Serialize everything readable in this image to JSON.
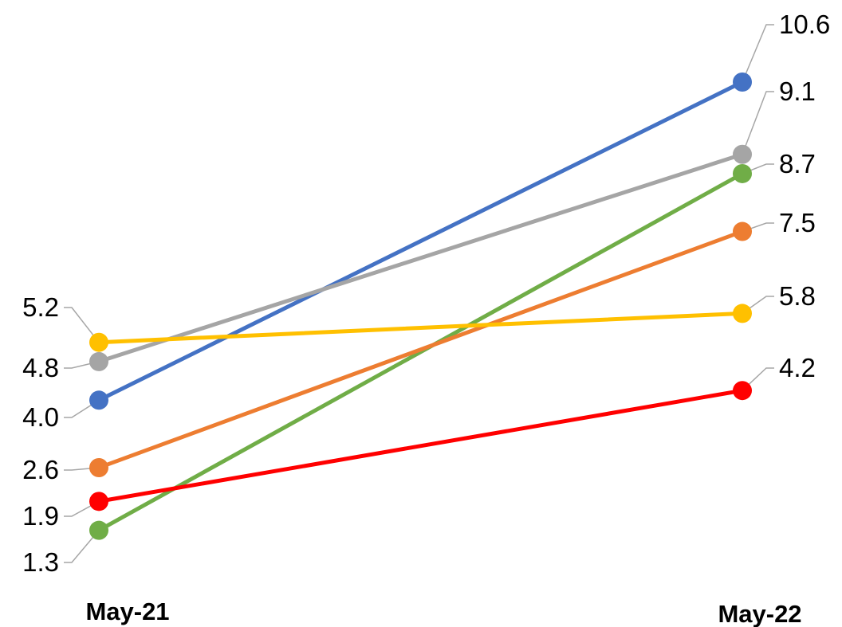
{
  "chart_data": {
    "type": "line",
    "categories": [
      "May-21",
      "May-22"
    ],
    "series": [
      {
        "color": "#4472C4",
        "values": [
          4.0,
          10.6
        ],
        "labels": [
          "4.0",
          "10.6"
        ]
      },
      {
        "color": "#A5A5A5",
        "values": [
          4.8,
          9.1
        ],
        "labels": [
          "4.8",
          "9.1"
        ]
      },
      {
        "color": "#70AD47",
        "values": [
          1.3,
          8.7
        ],
        "labels": [
          "1.3",
          "8.7"
        ]
      },
      {
        "color": "#ED7D31",
        "values": [
          2.6,
          7.5
        ],
        "labels": [
          "2.6",
          "7.5"
        ]
      },
      {
        "color": "#FFC000",
        "values": [
          5.2,
          5.8
        ],
        "labels": [
          "5.2",
          "5.8"
        ]
      },
      {
        "color": "#FF0000",
        "values": [
          1.9,
          4.2
        ],
        "labels": [
          "1.9",
          "4.2"
        ]
      }
    ],
    "title": "",
    "xlabel": "",
    "ylabel": "",
    "legend": "none",
    "grid": false,
    "data_labels": true
  }
}
